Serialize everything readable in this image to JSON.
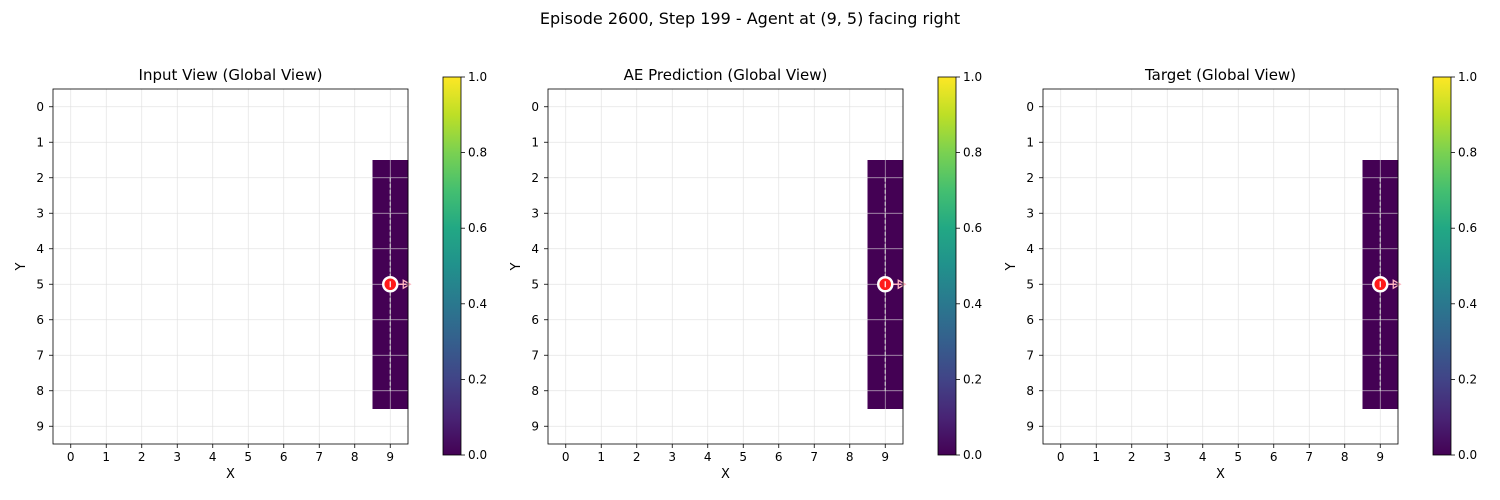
{
  "suptitle": "Episode 2600, Step 199 - Agent at (9, 5) facing right",
  "colors": {
    "mask_fill": "#440154",
    "agent_fill": "#ff1a1a",
    "agent_stroke": "#ffffff",
    "arrow": "#ffb6c1",
    "path_line": "#cccccc",
    "grid": "#dddddd"
  },
  "chart_data": [
    {
      "type": "heatmap",
      "title": "Input View (Global View)",
      "xlabel": "X",
      "ylabel": "Y",
      "xlim": [
        -0.5,
        9.5
      ],
      "ylim": [
        9.5,
        -0.5
      ],
      "xticks": [
        0,
        1,
        2,
        3,
        4,
        5,
        6,
        7,
        8,
        9
      ],
      "yticks": [
        0,
        1,
        2,
        3,
        4,
        5,
        6,
        7,
        8,
        9
      ],
      "grid": true,
      "cells": [
        {
          "x": 9,
          "y": 2,
          "value": 0
        },
        {
          "x": 9,
          "y": 3,
          "value": 0
        },
        {
          "x": 9,
          "y": 4,
          "value": 0
        },
        {
          "x": 9,
          "y": 5,
          "value": 0
        },
        {
          "x": 9,
          "y": 6,
          "value": 0
        },
        {
          "x": 9,
          "y": 7,
          "value": 0
        },
        {
          "x": 9,
          "y": 8,
          "value": 0
        }
      ],
      "path": {
        "x": [
          9,
          9
        ],
        "y": [
          2,
          8
        ]
      },
      "agent": {
        "x": 9,
        "y": 5,
        "direction": "right"
      },
      "colorbar": {
        "colormap": "viridis",
        "min": 0.0,
        "max": 1.0,
        "ticks": [
          "0.0",
          "0.2",
          "0.4",
          "0.6",
          "0.8",
          "1.0"
        ]
      }
    },
    {
      "type": "heatmap",
      "title": "AE Prediction (Global View)",
      "xlabel": "X",
      "ylabel": "Y",
      "xlim": [
        -0.5,
        9.5
      ],
      "ylim": [
        9.5,
        -0.5
      ],
      "xticks": [
        0,
        1,
        2,
        3,
        4,
        5,
        6,
        7,
        8,
        9
      ],
      "yticks": [
        0,
        1,
        2,
        3,
        4,
        5,
        6,
        7,
        8,
        9
      ],
      "grid": true,
      "cells": [
        {
          "x": 9,
          "y": 2,
          "value": 0
        },
        {
          "x": 9,
          "y": 3,
          "value": 0
        },
        {
          "x": 9,
          "y": 4,
          "value": 0
        },
        {
          "x": 9,
          "y": 5,
          "value": 0
        },
        {
          "x": 9,
          "y": 6,
          "value": 0
        },
        {
          "x": 9,
          "y": 7,
          "value": 0
        },
        {
          "x": 9,
          "y": 8,
          "value": 0
        }
      ],
      "path": {
        "x": [
          9,
          9
        ],
        "y": [
          2,
          8
        ]
      },
      "agent": {
        "x": 9,
        "y": 5,
        "direction": "right"
      },
      "colorbar": {
        "colormap": "viridis",
        "min": 0.0,
        "max": 1.0,
        "ticks": [
          "0.0",
          "0.2",
          "0.4",
          "0.6",
          "0.8",
          "1.0"
        ]
      }
    },
    {
      "type": "heatmap",
      "title": "Target (Global View)",
      "xlabel": "X",
      "ylabel": "Y",
      "xlim": [
        -0.5,
        9.5
      ],
      "ylim": [
        9.5,
        -0.5
      ],
      "xticks": [
        0,
        1,
        2,
        3,
        4,
        5,
        6,
        7,
        8,
        9
      ],
      "yticks": [
        0,
        1,
        2,
        3,
        4,
        5,
        6,
        7,
        8,
        9
      ],
      "grid": true,
      "cells": [
        {
          "x": 9,
          "y": 2,
          "value": 0
        },
        {
          "x": 9,
          "y": 3,
          "value": 0
        },
        {
          "x": 9,
          "y": 4,
          "value": 0
        },
        {
          "x": 9,
          "y": 5,
          "value": 0
        },
        {
          "x": 9,
          "y": 6,
          "value": 0
        },
        {
          "x": 9,
          "y": 7,
          "value": 0
        },
        {
          "x": 9,
          "y": 8,
          "value": 0
        }
      ],
      "path": {
        "x": [
          9,
          9
        ],
        "y": [
          2,
          8
        ]
      },
      "agent": {
        "x": 9,
        "y": 5,
        "direction": "right"
      },
      "colorbar": {
        "colormap": "viridis",
        "min": 0.0,
        "max": 1.0,
        "ticks": [
          "0.0",
          "0.2",
          "0.4",
          "0.6",
          "0.8",
          "1.0"
        ]
      }
    }
  ]
}
